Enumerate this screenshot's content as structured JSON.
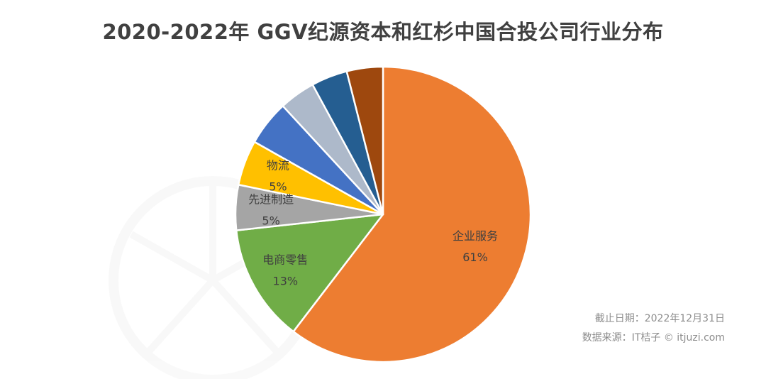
{
  "chart_data": {
    "type": "pie",
    "title": "2020-2022年 GGV纪源资本和红杉中国合投公司行业分布",
    "start_angle_deg": 0,
    "direction": "clockwise",
    "slices": [
      {
        "name": "企业服务",
        "value": 61,
        "value_label": "61%",
        "color": "#ED7D31",
        "labeled": true
      },
      {
        "name": "电商零售",
        "value": 13,
        "value_label": "13%",
        "color": "#70AD47",
        "labeled": true
      },
      {
        "name": "先进制造",
        "value": 5,
        "value_label": "5%",
        "color": "#A5A5A5",
        "labeled": true
      },
      {
        "name": "物流",
        "value": 5,
        "value_label": "5%",
        "color": "#FFC000",
        "labeled": true
      },
      {
        "name": "",
        "value": 5,
        "value_label": "",
        "color": "#4472C4",
        "labeled": false
      },
      {
        "name": "",
        "value": 4,
        "value_label": "",
        "color": "#ADB9CA",
        "labeled": false
      },
      {
        "name": "",
        "value": 4,
        "value_label": "",
        "color": "#255E91",
        "labeled": false
      },
      {
        "name": "",
        "value": 4,
        "value_label": "",
        "color": "#9E480E",
        "labeled": false
      }
    ]
  },
  "footer": {
    "cutoff_date": "截止日期：2022年12月31日",
    "source": "数据来源：IT桔子 © itjuzi.com"
  }
}
